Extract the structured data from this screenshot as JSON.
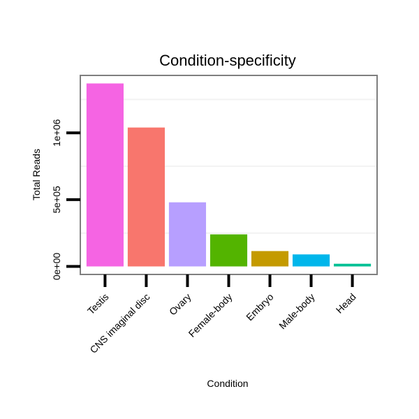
{
  "chart_data": {
    "type": "bar",
    "title": "Condition-specificity",
    "xlabel": "Condition",
    "ylabel": "Total Reads",
    "categories": [
      "Testis",
      "CNS imaginal disc",
      "Ovary",
      "Female-body",
      "Embryo",
      "Male-body",
      "Head"
    ],
    "values": [
      1370000,
      1040000,
      480000,
      240000,
      115000,
      90000,
      20000
    ],
    "colors": [
      "#F564E3",
      "#F8766D",
      "#B79FFF",
      "#53B400",
      "#C49A00",
      "#00B6EB",
      "#00C094"
    ],
    "yticks": [
      {
        "value": 0,
        "label": "0e+00"
      },
      {
        "value": 500000,
        "label": "5e+05"
      },
      {
        "value": 1000000,
        "label": "1e+06"
      }
    ],
    "ylim": [
      -60000,
      1430000
    ],
    "grid": true,
    "legend": "none"
  }
}
